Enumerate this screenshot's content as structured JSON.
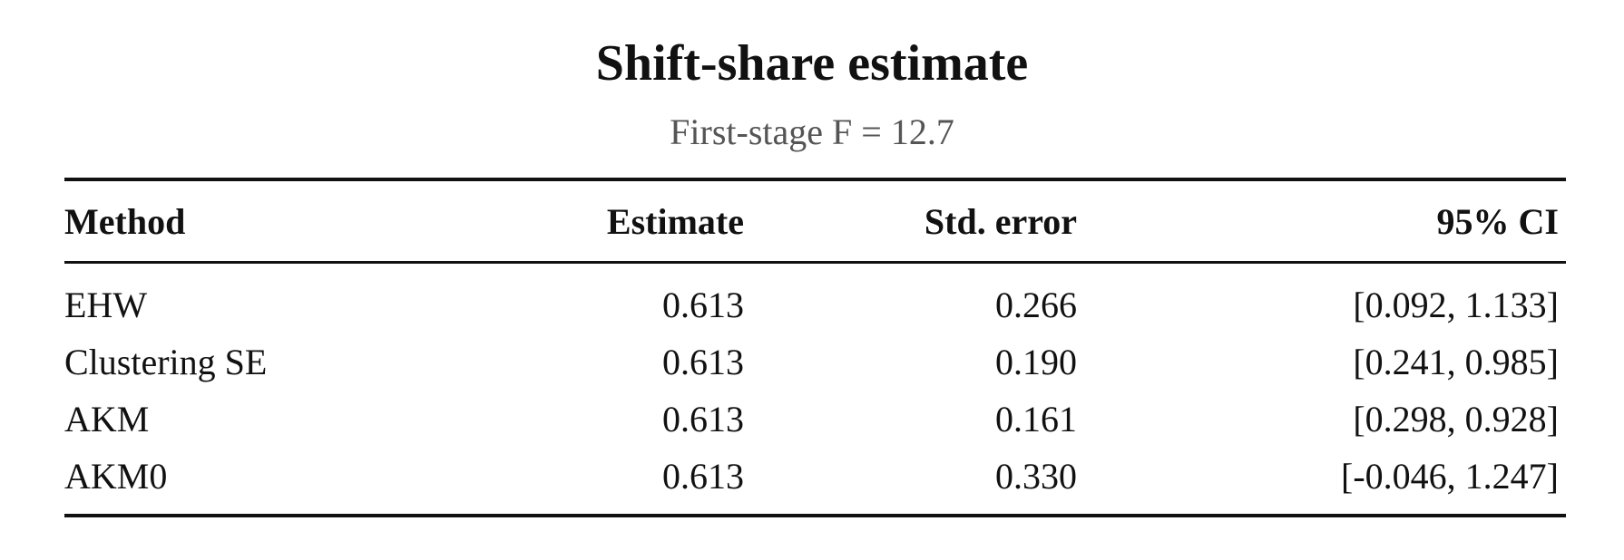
{
  "header": {
    "title": "Shift-share estimate",
    "subtitle": "First-stage F = 12.7"
  },
  "table": {
    "columns": [
      "Method",
      "Estimate",
      "Std. error",
      "95% CI"
    ],
    "rows": [
      [
        "EHW",
        "0.613",
        "0.266",
        "[0.092, 1.133]"
      ],
      [
        "Clustering SE",
        "0.613",
        "0.190",
        "[0.241, 0.985]"
      ],
      [
        "AKM",
        "0.613",
        "0.161",
        "[0.298, 0.928]"
      ],
      [
        "AKM0",
        "0.613",
        "0.330",
        "[-0.046, 1.247]"
      ]
    ]
  }
}
